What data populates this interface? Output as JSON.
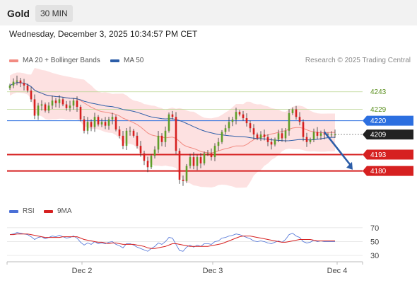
{
  "header": {
    "symbol": "Gold",
    "timeframe": "30 MIN"
  },
  "datetime": "Wednesday, December 3, 2025 10:34:57 PM CET",
  "legend": {
    "bollinger": {
      "label": "MA 20 + Bollinger Bands",
      "color": "#f28b82"
    },
    "ma50": {
      "label": "MA 50",
      "color": "#2c5da8"
    }
  },
  "credit": "Research © 2025 Trading Central",
  "rsi_legend": {
    "rsi": {
      "label": "RSI",
      "color": "#4a6fd6"
    },
    "ma9": {
      "label": "9MA",
      "color": "#d62020"
    }
  },
  "colors": {
    "up": "#5f9e2a",
    "down": "#d62020",
    "wick": "#333333",
    "band": "#fddcdc",
    "pivot": "#2c6fe0",
    "arrow": "#2c5da8"
  },
  "chart_data": [
    {
      "type": "candlestick",
      "x_labels": [
        "Dec 2",
        "Dec 3",
        "Dec 4"
      ],
      "ylim": [
        4155,
        4262
      ],
      "levels": [
        {
          "value": 4243,
          "label": "4243",
          "kind": "resistance"
        },
        {
          "value": 4229,
          "label": "4229",
          "kind": "resistance"
        },
        {
          "value": 4220,
          "label": "4220",
          "kind": "pivot"
        },
        {
          "value": 4209,
          "label": "4209",
          "kind": "last"
        },
        {
          "value": 4193,
          "label": "4193",
          "kind": "support"
        },
        {
          "value": 4180,
          "label": "4180",
          "kind": "support"
        }
      ],
      "arrow": {
        "from_bar": 89,
        "from": 4211,
        "to_bar": 97,
        "to": 4181
      },
      "close": [
        4248,
        4251,
        4252,
        4250,
        4248,
        4244,
        4237,
        4224,
        4232,
        4233,
        4228,
        4232,
        4236,
        4234,
        4237,
        4233,
        4230,
        4232,
        4236,
        4231,
        4221,
        4212,
        4219,
        4215,
        4223,
        4217,
        4219,
        4216,
        4221,
        4223,
        4213,
        4208,
        4200,
        4212,
        4212,
        4208,
        4200,
        4194,
        4188,
        4183,
        4192,
        4197,
        4208,
        4203,
        4212,
        4225,
        4223,
        4196,
        4173,
        4172,
        4184,
        4191,
        4184,
        4191,
        4186,
        4194,
        4194,
        4191,
        4200,
        4203,
        4211,
        4214,
        4219,
        4221,
        4227,
        4225,
        4222,
        4218,
        4214,
        4209,
        4206,
        4209,
        4207,
        4203,
        4201,
        4205,
        4210,
        4206,
        4212,
        4226,
        4229,
        4223,
        4219,
        4207,
        4203,
        4205,
        4211,
        4208,
        4210,
        4209,
        4209,
        4209,
        4209
      ],
      "rsi": {
        "ylim": [
          25,
          80
        ],
        "ticks": [
          "70",
          "50",
          "30"
        ],
        "values": [
          60,
          61,
          63,
          62,
          61,
          60,
          57,
          53,
          56,
          57,
          54,
          56,
          58,
          57,
          59,
          57,
          55,
          56,
          58,
          55,
          49,
          45,
          48,
          46,
          50,
          47,
          48,
          47,
          49,
          50,
          46,
          44,
          41,
          47,
          47,
          45,
          42,
          40,
          38,
          36,
          40,
          43,
          48,
          46,
          50,
          56,
          55,
          46,
          37,
          36,
          42,
          45,
          42,
          45,
          43,
          47,
          47,
          46,
          50,
          51,
          55,
          56,
          58,
          59,
          61,
          60,
          58,
          56,
          54,
          51,
          50,
          51,
          50,
          48,
          47,
          49,
          51,
          49,
          53,
          60,
          62,
          58,
          56,
          50,
          48,
          49,
          52,
          50,
          51,
          50,
          50,
          50,
          50
        ],
        "ma9": [
          60,
          60,
          61,
          61,
          61,
          61,
          60,
          59,
          58,
          57,
          56,
          56,
          56,
          56,
          56,
          57,
          57,
          57,
          57,
          57,
          55,
          53,
          52,
          51,
          50,
          49,
          49,
          48,
          47,
          48,
          48,
          47,
          46,
          46,
          46,
          46,
          45,
          44,
          43,
          41,
          40,
          40,
          41,
          42,
          43,
          45,
          47,
          47,
          46,
          45,
          44,
          43,
          43,
          43,
          43,
          43,
          43,
          44,
          45,
          46,
          47,
          49,
          51,
          53,
          55,
          57,
          58,
          58,
          58,
          57,
          56,
          55,
          54,
          53,
          52,
          51,
          50,
          49,
          49,
          50,
          51,
          52,
          53,
          53,
          53,
          53,
          52,
          51,
          51,
          51,
          51,
          51,
          51
        ]
      }
    }
  ]
}
